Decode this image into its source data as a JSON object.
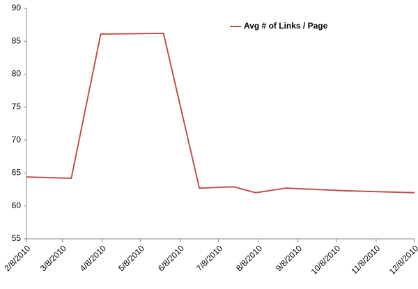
{
  "chart_data": {
    "type": "line",
    "x": [
      "2/8/2010",
      "3/15/2010",
      "4/7/2010",
      "5/26/2010",
      "6/23/2010",
      "7/20/2010",
      "8/6/2010",
      "8/29/2010",
      "10/16/2010",
      "12/8/2010"
    ],
    "series": [
      {
        "name": "Avg # of Links / Page",
        "color": "#c0504d",
        "values": [
          64.4,
          64.2,
          86.1,
          86.2,
          62.7,
          62.9,
          62.0,
          62.7,
          62.3,
          62.0
        ]
      }
    ],
    "xlim": [
      "2/8/2010",
      "12/8/2010"
    ],
    "xticks": [
      "2/8/2010",
      "3/8/2010",
      "4/8/2010",
      "5/8/2010",
      "6/8/2010",
      "7/8/2010",
      "8/8/2010",
      "9/8/2010",
      "10/8/2010",
      "11/8/2010",
      "12/8/2010"
    ],
    "ylim": [
      55,
      90
    ],
    "yticks": [
      55,
      60,
      65,
      70,
      75,
      80,
      85,
      90
    ],
    "grid": false,
    "legend": "top"
  }
}
